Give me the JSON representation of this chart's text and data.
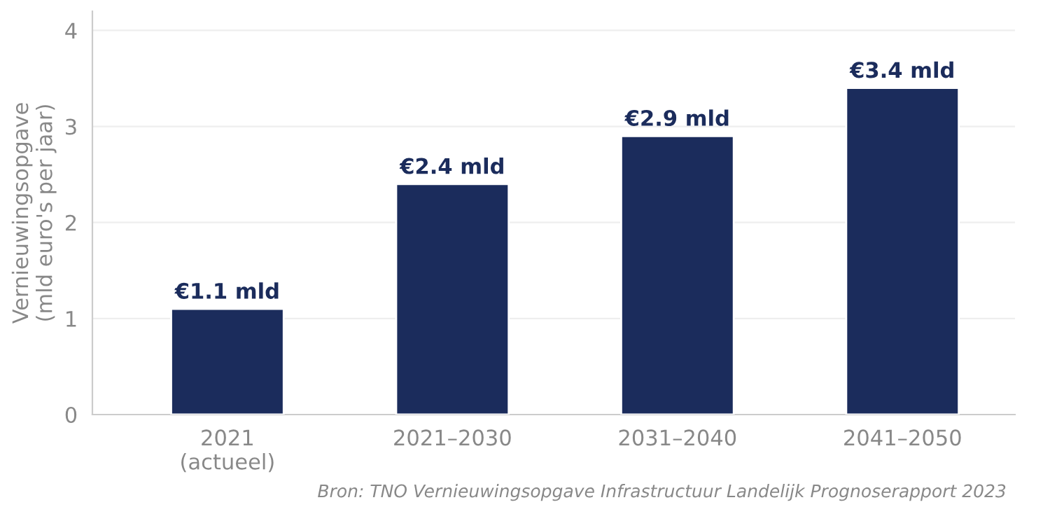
{
  "chart_data": {
    "type": "bar",
    "categories": [
      "2021\n(actueel)",
      "2021–2030",
      "2031–2040",
      "2041–2050"
    ],
    "values": [
      1.1,
      2.4,
      2.9,
      3.4
    ],
    "value_labels": [
      "€1.1 mld",
      "€2.4 mld",
      "€2.9 mld",
      "€3.4 mld"
    ],
    "color": "#1b2c5c",
    "ylabel": "Vernieuwingsopgave\n(mld euro's per jaar)",
    "ylim": [
      0,
      4.2
    ],
    "yticks": [
      0,
      1,
      2,
      3,
      4
    ],
    "grid": "y",
    "annotations": [
      "Bron: TNO Vernieuwingsopgave Infrastructuur Landelijk Prognoserapport 2023"
    ]
  }
}
